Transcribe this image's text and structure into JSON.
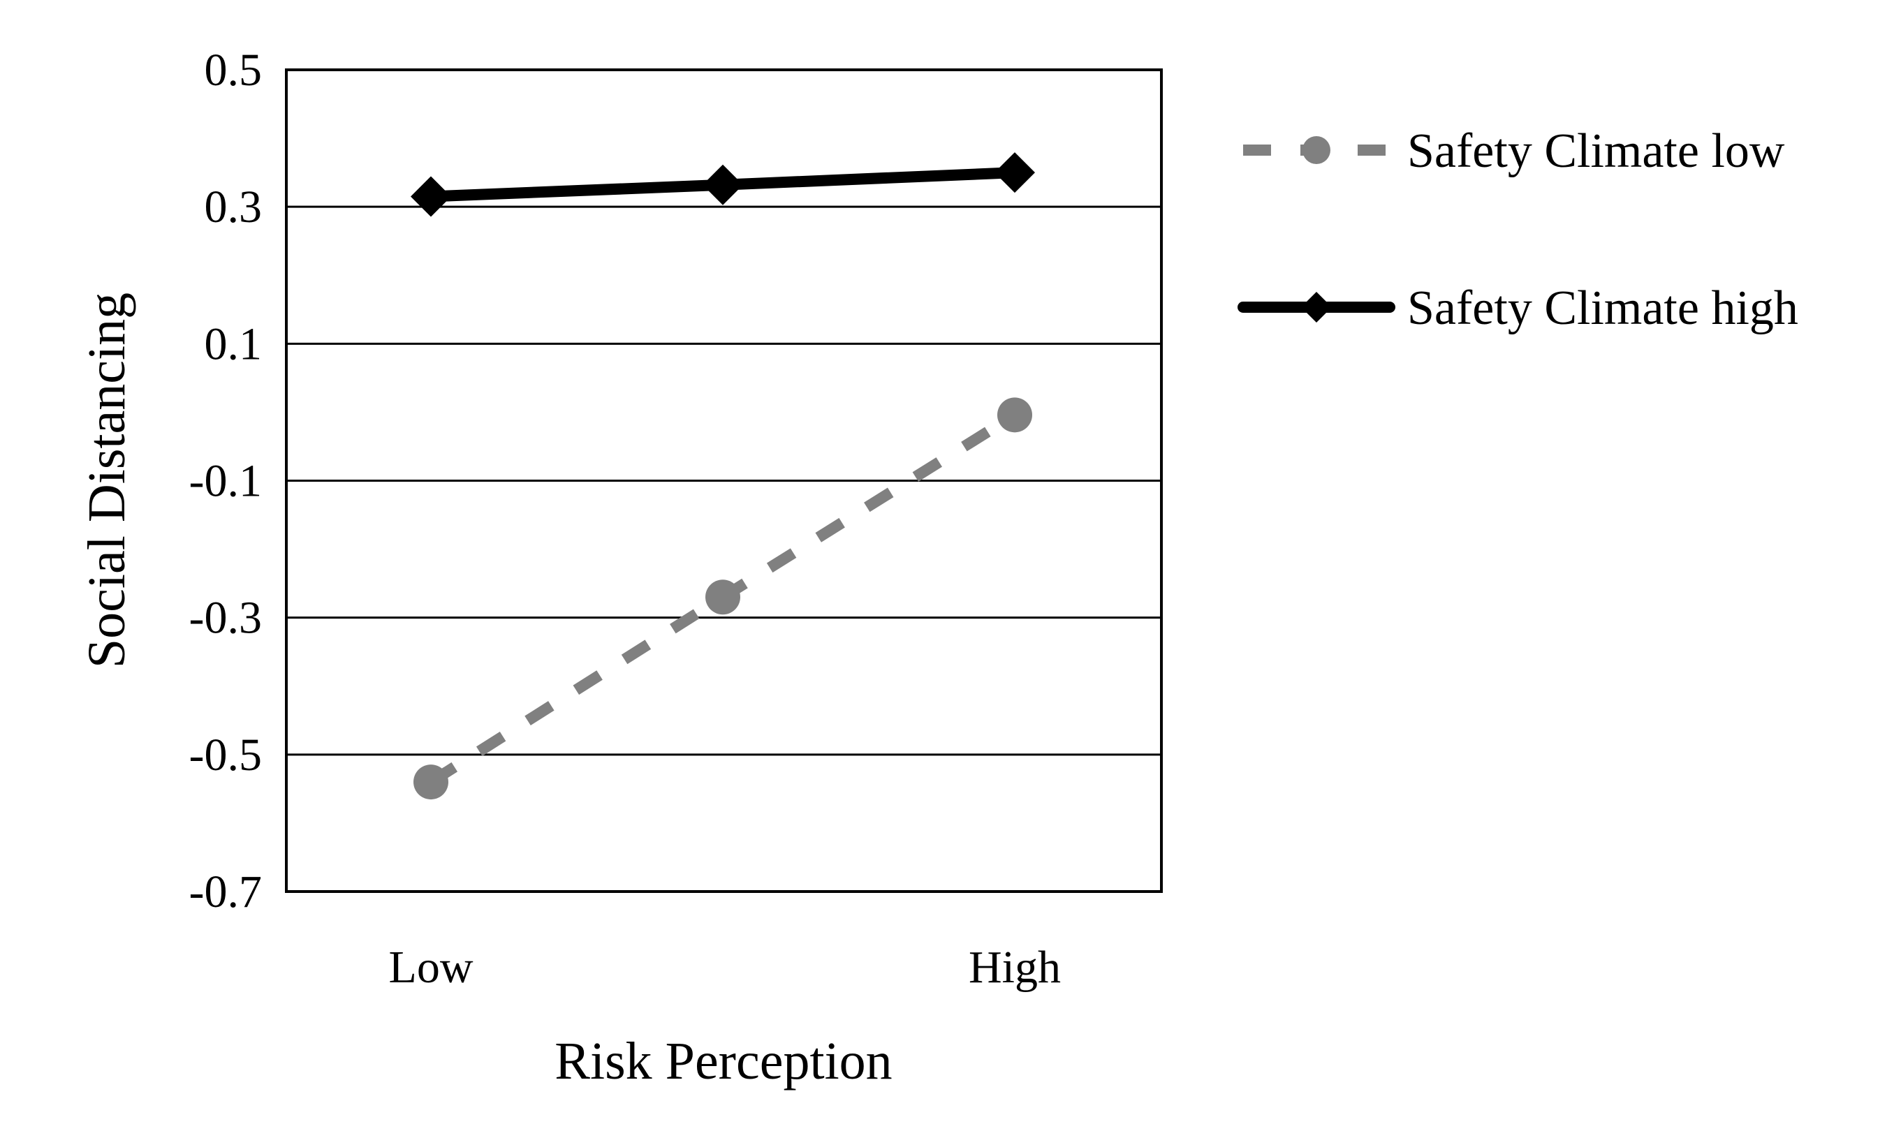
{
  "chart_data": {
    "type": "line",
    "title": "",
    "xlabel": "Risk Perception",
    "ylabel": "Social Distancing",
    "categories": [
      "Low",
      "",
      "High"
    ],
    "x_tick_labels": [
      "Low",
      "High"
    ],
    "ylim": [
      -0.7,
      0.5
    ],
    "y_ticks": [
      0.5,
      0.3,
      0.1,
      -0.1,
      -0.3,
      -0.5,
      -0.7
    ],
    "y_tick_labels": [
      "0.5",
      "0.3",
      "0.1",
      "-0.1",
      "-0.3",
      "-0.5",
      "-0.7"
    ],
    "grid": "horizontal",
    "legend_position": "right",
    "series": [
      {
        "name": "Safety Climate low",
        "values": [
          -0.54,
          -0.27,
          -0.004
        ],
        "color": "#808080",
        "line_style": "dashed",
        "marker": "circle"
      },
      {
        "name": "Safety Climate high",
        "values": [
          0.315,
          0.332,
          0.35
        ],
        "color": "#000000",
        "line_style": "solid",
        "marker": "diamond"
      }
    ]
  }
}
